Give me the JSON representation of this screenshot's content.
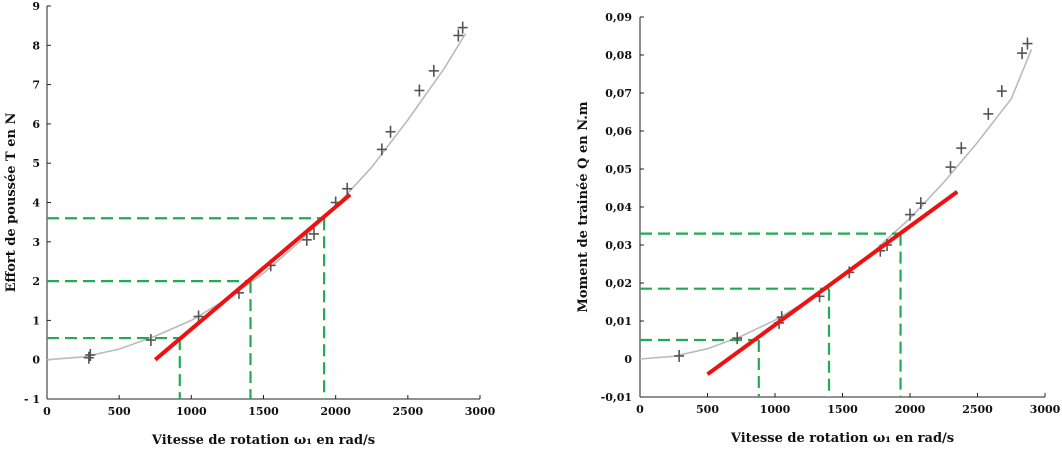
{
  "chart_data": [
    {
      "type": "scatter",
      "id": "left",
      "title": "",
      "xlabel": "Vitesse de rotation ω₁ en rad/s",
      "ylabel": "Effort de poussée T en N",
      "xlim": [
        0,
        3000
      ],
      "ylim": [
        -1,
        9
      ],
      "x_ticks": [
        0,
        500,
        1000,
        1500,
        2000,
        2500,
        3000
      ],
      "x_tick_labels": [
        "0",
        "500",
        "1000",
        "1500",
        "2000",
        "2500",
        "3000"
      ],
      "y_ticks": [
        -1,
        0,
        1,
        2,
        3,
        4,
        5,
        6,
        7,
        8,
        9
      ],
      "y_tick_labels": [
        "- 1",
        "0",
        "1",
        "2",
        "3",
        "4",
        "5",
        "6",
        "7",
        "8",
        "9"
      ],
      "grid": false,
      "series": [
        {
          "name": "measurements",
          "x": [
            290,
            300,
            720,
            1050,
            1330,
            1550,
            1800,
            1850,
            2000,
            2080,
            2320,
            2380,
            2580,
            2680,
            2850,
            2880
          ],
          "y": [
            0.05,
            0.12,
            0.5,
            1.1,
            1.7,
            2.4,
            3.05,
            3.2,
            4.0,
            4.35,
            5.35,
            5.8,
            6.85,
            7.35,
            8.25,
            8.45
          ]
        }
      ],
      "fit_curve": {
        "x": [
          0,
          250,
          500,
          750,
          1000,
          1250,
          1500,
          1750,
          2000,
          2250,
          2500,
          2750,
          2900
        ],
        "y": [
          0,
          0.07,
          0.27,
          0.6,
          1.0,
          1.55,
          2.2,
          3.0,
          3.9,
          4.9,
          6.1,
          7.4,
          8.3
        ]
      },
      "linear_fit": {
        "x": [
          750,
          2100
        ],
        "y": [
          0.0,
          4.2
        ]
      },
      "guides": [
        {
          "x": 920,
          "y": 0.55
        },
        {
          "x": 1410,
          "y": 2.0
        },
        {
          "x": 1920,
          "y": 3.6
        }
      ],
      "colors": {
        "points": "#555555",
        "curve": "#bbbbbb",
        "fit": "#ee1111",
        "guides": "#22aa55"
      }
    },
    {
      "type": "scatter",
      "id": "right",
      "title": "",
      "xlabel": "Vitesse de rotation ω₁ en rad/s",
      "ylabel": "Moment de trainée Q en N.m",
      "xlim": [
        0,
        3000
      ],
      "ylim": [
        -0.01,
        0.09
      ],
      "x_ticks": [
        0,
        500,
        1000,
        1500,
        2000,
        2500,
        3000
      ],
      "x_tick_labels": [
        "0",
        "500",
        "1000",
        "1500",
        "2000",
        "2500",
        "3000"
      ],
      "y_ticks": [
        -0.01,
        0,
        0.01,
        0.02,
        0.03,
        0.04,
        0.05,
        0.06,
        0.07,
        0.08,
        0.09
      ],
      "y_tick_labels": [
        "-0,01",
        "0",
        "0,01",
        "0,02",
        "0,03",
        "0,04",
        "0,05",
        "0,06",
        "0,07",
        "0,08",
        "0,09"
      ],
      "grid": false,
      "series": [
        {
          "name": "measurements",
          "x": [
            290,
            720,
            1030,
            1050,
            1330,
            1550,
            1780,
            1830,
            2000,
            2080,
            2300,
            2380,
            2580,
            2680,
            2830,
            2870
          ],
          "y": [
            0.0008,
            0.0055,
            0.0095,
            0.011,
            0.0165,
            0.0228,
            0.0285,
            0.03,
            0.038,
            0.041,
            0.0505,
            0.0555,
            0.0645,
            0.0705,
            0.0805,
            0.083
          ]
        }
      ],
      "fit_curve": {
        "x": [
          0,
          250,
          500,
          750,
          1000,
          1250,
          1500,
          1750,
          2000,
          2250,
          2500,
          2750,
          2900
        ],
        "y": [
          0,
          0.0007,
          0.0027,
          0.006,
          0.0102,
          0.0155,
          0.0215,
          0.029,
          0.037,
          0.0465,
          0.057,
          0.0685,
          0.0815
        ]
      },
      "linear_fit": {
        "x": [
          500,
          2350
        ],
        "y": [
          -0.004,
          0.044
        ]
      },
      "guides": [
        {
          "x": 880,
          "y": 0.005
        },
        {
          "x": 1400,
          "y": 0.0185
        },
        {
          "x": 1930,
          "y": 0.033
        }
      ],
      "colors": {
        "points": "#555555",
        "curve": "#bbbbbb",
        "fit": "#ee1111",
        "guides": "#22aa55"
      }
    }
  ]
}
